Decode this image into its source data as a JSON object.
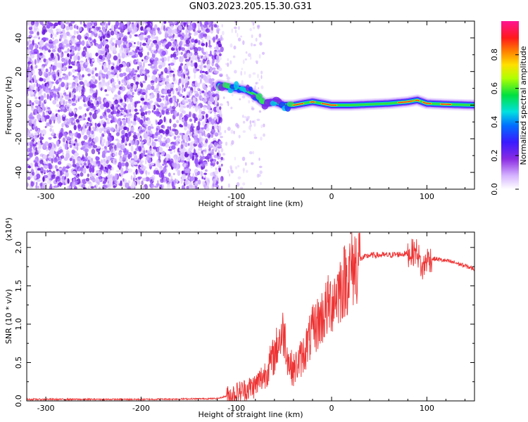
{
  "title": "GN03.2023.205.15.30.G31",
  "chart_data": [
    {
      "type": "heatmap",
      "xlabel": "Height of straight line (km)",
      "ylabel": "Frequency (Hz)",
      "xlim": [
        -320,
        150
      ],
      "ylim": [
        -50,
        50
      ],
      "xticks": [
        -300,
        -200,
        -100,
        0,
        100
      ],
      "yticks": [
        -40,
        -20,
        0,
        20,
        40
      ],
      "colorbar": {
        "label": "Normalized spectral amplitude",
        "range": [
          0,
          1
        ],
        "ticks": [
          "0.0",
          "0.2",
          "0.4",
          "0.6",
          "0.8"
        ]
      },
      "noise_region_x": [
        -320,
        -115
      ],
      "signal_track": {
        "x": [
          -118,
          -110,
          -100,
          -90,
          -80,
          -75,
          -70,
          -60,
          -50,
          -40,
          -30,
          -20,
          -10,
          0,
          20,
          40,
          60,
          80,
          90,
          100,
          120,
          150
        ],
        "y": [
          12,
          11,
          10,
          9,
          6,
          3,
          1,
          2,
          0,
          0,
          1,
          2,
          1,
          0,
          0,
          0.5,
          1,
          2,
          3,
          1,
          0.5,
          0
        ]
      }
    },
    {
      "type": "line",
      "xlabel": "Height of straight line (km)",
      "ylabel": "SNR (10 * v/v)",
      "yscale_label": "(x10⁴)",
      "xlim": [
        -320,
        150
      ],
      "ylim": [
        0,
        2.2
      ],
      "xticks": [
        -300,
        -200,
        -100,
        0,
        100
      ],
      "yticks": [
        "0.0",
        "0.5",
        "1.0",
        "1.5",
        "2.0"
      ],
      "color": "#ee3333",
      "series": [
        {
          "x": [
            -320,
            -200,
            -120,
            -105,
            -90,
            -80,
            -70,
            -60,
            -55,
            -50,
            -45,
            -40,
            -30,
            -20,
            -10,
            0,
            10,
            20,
            30,
            40,
            60,
            80,
            90,
            95,
            100,
            110,
            130,
            150
          ],
          "y": [
            0.02,
            0.02,
            0.03,
            0.08,
            0.15,
            0.2,
            0.35,
            0.6,
            0.8,
            0.9,
            0.5,
            0.4,
            0.6,
            0.9,
            1.1,
            1.3,
            1.5,
            1.7,
            1.85,
            1.9,
            1.9,
            1.92,
            1.95,
            1.7,
            1.85,
            1.85,
            1.8,
            1.72
          ]
        }
      ]
    }
  ]
}
